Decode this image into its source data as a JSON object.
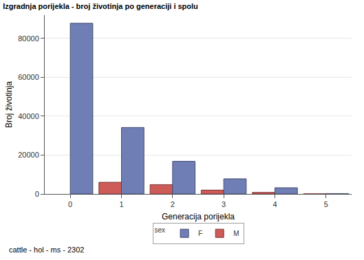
{
  "chart_data": {
    "type": "bar",
    "title": "Izgradnja porijekla - broj životinja po generaciji i spolu",
    "x_label": "Generacija porijekla",
    "y_label": "Broj životinja",
    "categories": [
      0,
      1,
      2,
      3,
      4,
      5
    ],
    "series": [
      {
        "name": "F",
        "color": "#6F7EB5",
        "values": [
          87800,
          34200,
          16800,
          7800,
          3200,
          200
        ]
      },
      {
        "name": "M",
        "color": "#CD5B57",
        "values": [
          null,
          6000,
          4800,
          2000,
          800,
          100
        ]
      }
    ],
    "ylim": [
      0,
      92000
    ],
    "yticks": [
      0,
      20000,
      40000,
      60000,
      80000
    ],
    "grid": true,
    "legend": "bottom",
    "legend_title": "sex",
    "annotations": [
      "cattle - hol - ms - 2302"
    ]
  }
}
